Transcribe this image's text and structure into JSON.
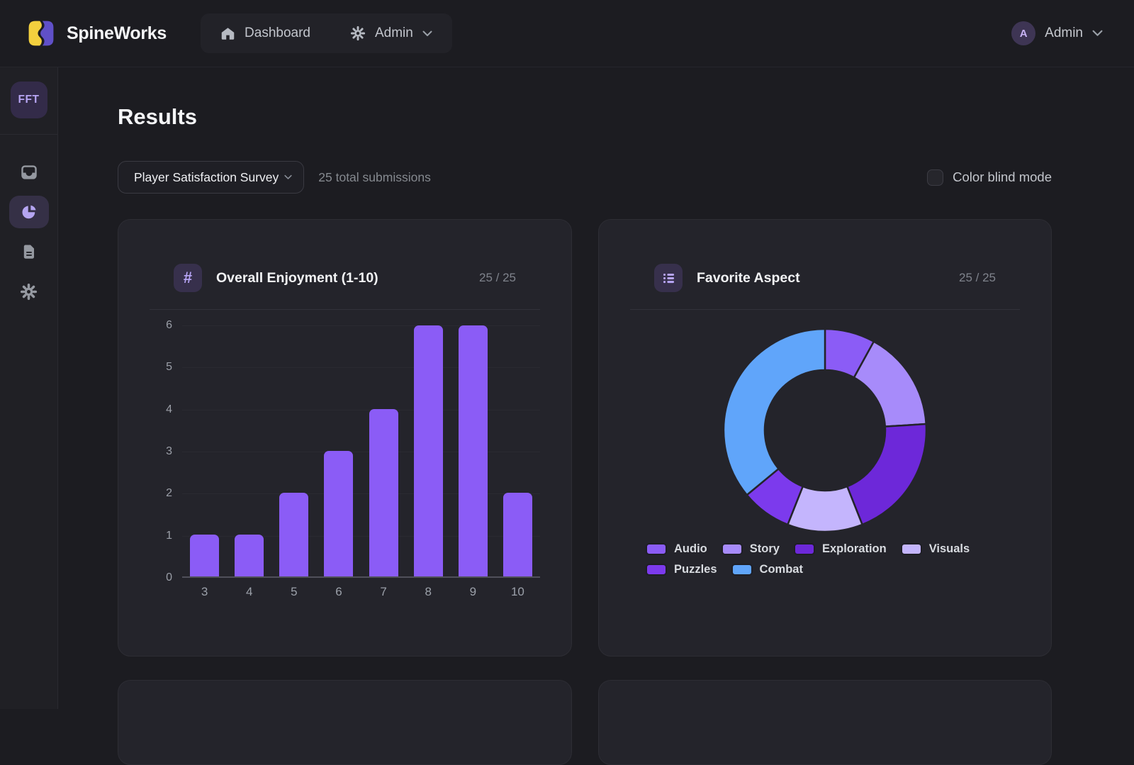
{
  "brand": "SpineWorks",
  "navbar": {
    "dashboard_label": "Dashboard",
    "admin_menu_label": "Admin",
    "user_initial": "A",
    "user_name": "Admin"
  },
  "sidebar": {
    "workspace_badge": "FFT"
  },
  "page": {
    "title": "Results",
    "survey_selector_value": "Player Satisfaction Survey",
    "submissions_text": "25 total submissions",
    "colorblind_label": "Color blind mode"
  },
  "cards": [
    {
      "icon": "hash-icon",
      "hash_glyph": "#",
      "title": "Overall Enjoyment (1-10)",
      "responses": "25 / 25"
    },
    {
      "icon": "list-icon",
      "title": "Favorite Aspect",
      "responses": "25 / 25"
    }
  ],
  "chart_data": [
    {
      "type": "bar",
      "title": "Overall Enjoyment (1-10)",
      "categories": [
        "3",
        "4",
        "5",
        "6",
        "7",
        "8",
        "9",
        "10"
      ],
      "values": [
        1,
        1,
        2,
        3,
        4,
        6,
        6,
        2
      ],
      "xlabel": "",
      "ylabel": "",
      "ylim": [
        0,
        6
      ],
      "yticks": [
        0,
        1,
        2,
        3,
        4,
        5,
        6
      ],
      "grid": true,
      "bar_color": "#8b5cf6",
      "responses_total": 25
    },
    {
      "type": "pie",
      "subtype": "donut",
      "title": "Favorite Aspect",
      "segments": [
        {
          "label": "Audio",
          "value": 2,
          "color": "#8b5cf6"
        },
        {
          "label": "Story",
          "value": 4,
          "color": "#a78bfa"
        },
        {
          "label": "Exploration",
          "value": 5,
          "color": "#6d28d9"
        },
        {
          "label": "Visuals",
          "value": 3,
          "color": "#c4b5fd"
        },
        {
          "label": "Puzzles",
          "value": 2,
          "color": "#7c3aed"
        },
        {
          "label": "Combat",
          "value": 9,
          "color": "#60a5fa"
        }
      ],
      "legend_position": "bottom",
      "responses_total": 25
    }
  ],
  "colors": {
    "accent": "#8b5cf6",
    "page_bg": "#1c1c21",
    "card_bg": "#24242b",
    "logo_yellow": "#f3d03e",
    "logo_purple": "#6050c8"
  }
}
